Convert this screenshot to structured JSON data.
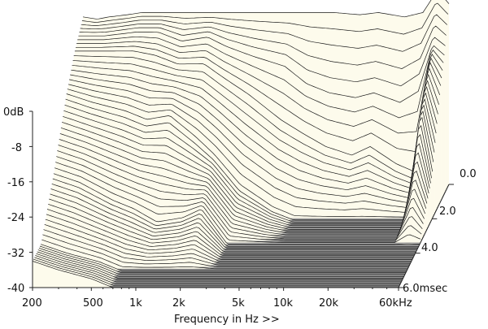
{
  "chart_data": {
    "type": "area",
    "title": "",
    "subtitle": "",
    "xlabel": "Frequency in Hz >>",
    "ylabel": "",
    "zlabel": "",
    "x_scale": "log",
    "x_ticks": [
      "200",
      "500",
      "1k",
      "2k",
      "5k",
      "10k",
      "20k",
      "60kHz"
    ],
    "y_ticks": [
      "0dB",
      "-8",
      "-16",
      "-24",
      "-32",
      "-40"
    ],
    "z_ticks": [
      "0.0",
      "2.0",
      "4.0",
      "6.0msec"
    ],
    "xlim": [
      200,
      60000
    ],
    "ylim": [
      -40,
      0
    ],
    "zlim": [
      0,
      6
    ],
    "grid": false,
    "legend": "none",
    "colors": {
      "curve_fill": "#fdfbec",
      "curve_line": "#1a1a1a",
      "floor": "#7a7a7a",
      "floor_line": "#bdbdbd"
    },
    "series": [
      {
        "time_ms": 0.0,
        "x": [
          200,
          250,
          300,
          400,
          500,
          700,
          1000,
          1500,
          2000,
          3000,
          5000,
          7000,
          10000,
          15000,
          20000,
          30000,
          40000,
          50000,
          60000
        ],
        "values": [
          -2,
          -2.5,
          -2,
          -1.5,
          -1,
          -1,
          -1,
          -1,
          -1,
          -1,
          -1,
          -1,
          -1,
          -1.5,
          -1,
          -2,
          -1,
          4,
          1
        ]
      },
      {
        "time_ms": 0.5,
        "x": [
          200,
          300,
          500,
          700,
          1000,
          1500,
          2000,
          3000,
          5000,
          7000,
          10000,
          15000,
          20000,
          30000,
          40000,
          50000,
          60000
        ],
        "values": [
          -4,
          -4,
          -3,
          -3,
          -5,
          -4,
          -6,
          -8,
          -10,
          -14,
          -16,
          -17,
          -16,
          -18,
          -15,
          -6,
          -8
        ]
      },
      {
        "time_ms": 1.0,
        "x": [
          200,
          300,
          500,
          700,
          1000,
          1500,
          2000,
          3000,
          5000,
          7000,
          10000,
          15000,
          20000,
          30000,
          40000,
          50000,
          60000
        ],
        "values": [
          -6,
          -6,
          -6,
          -7,
          -9,
          -9,
          -12,
          -16,
          -22,
          -25,
          -28,
          -30,
          -28,
          -32,
          -34,
          -8,
          -14
        ]
      },
      {
        "time_ms": 2.0,
        "x": [
          200,
          300,
          500,
          700,
          1000,
          1500,
          2000,
          3000,
          5000,
          7000,
          10000,
          15000,
          20000,
          30000,
          40000,
          50000,
          60000
        ],
        "values": [
          -12,
          -14,
          -16,
          -18,
          -17,
          -22,
          -26,
          -33,
          -38,
          -40,
          -40,
          -40,
          -40,
          -40,
          -40,
          -16,
          -30
        ]
      },
      {
        "time_ms": 3.5,
        "x": [
          200,
          300,
          500,
          700,
          1000,
          1500,
          2000,
          3000,
          5000,
          7000,
          10000,
          15000,
          20000,
          30000,
          40000,
          50000,
          60000
        ],
        "values": [
          -24,
          -26,
          -30,
          -32,
          -35,
          -34,
          -32,
          -40,
          -40,
          -40,
          -40,
          -40,
          -40,
          -40,
          -40,
          -40,
          -40
        ]
      },
      {
        "time_ms": 5.0,
        "x": [
          200,
          300,
          500,
          700,
          1000,
          1500,
          2000,
          3000,
          5000,
          7000,
          10000,
          15000,
          20000,
          30000,
          40000,
          50000,
          60000
        ],
        "values": [
          -34,
          -36,
          -38,
          -40,
          -40,
          -40,
          -40,
          -40,
          -40,
          -40,
          -40,
          -40,
          -40,
          -40,
          -40,
          -40,
          -40
        ]
      }
    ]
  }
}
